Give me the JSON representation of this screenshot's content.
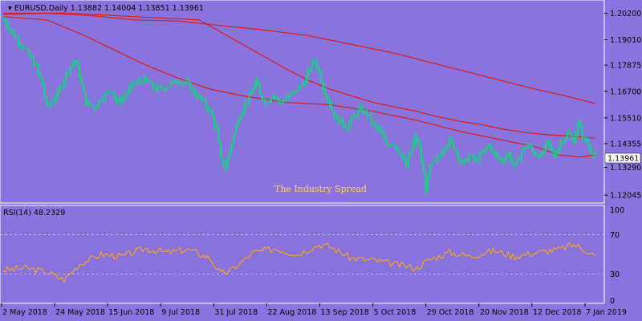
{
  "header": {
    "symbol_line": "EURUSD,Daily  1.13882 1.14004 1.13851 1.13961",
    "current_price": "1.13961"
  },
  "watermark": "The Industry Spread",
  "rsi": {
    "label": "RSI(14) 48.2329",
    "levels": [
      "100",
      "70",
      "30",
      "0"
    ]
  },
  "colors": {
    "background": "#8a73dc",
    "candle": "#00e676",
    "ma": "#d81b1b",
    "rsi_line": "#ffb300",
    "axis": "#ffffff",
    "price_tag": "#ffffff"
  },
  "chart_data": [
    {
      "type": "candlestick",
      "title": "EURUSD,Daily",
      "y_ticks": [
        "1.20200",
        "1.19010",
        "1.17875",
        "1.16700",
        "1.15510",
        "1.14355",
        "1.13290",
        "1.12045"
      ],
      "ylim": [
        1.118,
        1.2065
      ],
      "x_ticks": [
        "2 May 2018",
        "24 May 2018",
        "15 Jun 2018",
        "9 Jul 2018",
        "31 Jul 2018",
        "22 Aug 2018",
        "13 Sep 2018",
        "5 Oct 2018",
        "29 Oct 2018",
        "20 Nov 2018",
        "12 Dec 2018",
        "7 Jan 2019"
      ],
      "close_series": [
        [
          0,
          1.1995
        ],
        [
          5,
          1.192
        ],
        [
          10,
          1.186
        ],
        [
          15,
          1.178
        ],
        [
          18,
          1.17
        ],
        [
          20,
          1.1595
        ],
        [
          25,
          1.166
        ],
        [
          30,
          1.177
        ],
        [
          33,
          1.181
        ],
        [
          35,
          1.174
        ],
        [
          38,
          1.162
        ],
        [
          42,
          1.16
        ],
        [
          46,
          1.165
        ],
        [
          50,
          1.168
        ],
        [
          52,
          1.162
        ],
        [
          55,
          1.164
        ],
        [
          60,
          1.1705
        ],
        [
          65,
          1.172
        ],
        [
          70,
          1.168
        ],
        [
          75,
          1.169
        ],
        [
          80,
          1.172
        ],
        [
          85,
          1.17
        ],
        [
          88,
          1.166
        ],
        [
          92,
          1.162
        ],
        [
          95,
          1.158
        ],
        [
          98,
          1.15
        ],
        [
          100,
          1.136
        ],
        [
          102,
          1.133
        ],
        [
          105,
          1.144
        ],
        [
          108,
          1.155
        ],
        [
          111,
          1.161
        ],
        [
          114,
          1.166
        ],
        [
          116,
          1.172
        ],
        [
          118,
          1.165
        ],
        [
          121,
          1.162
        ],
        [
          124,
          1.166
        ],
        [
          127,
          1.162
        ],
        [
          130,
          1.164
        ],
        [
          133,
          1.166
        ],
        [
          136,
          1.169
        ],
        [
          139,
          1.172
        ],
        [
          141,
          1.178
        ],
        [
          143,
          1.181
        ],
        [
          145,
          1.176
        ],
        [
          147,
          1.168
        ],
        [
          149,
          1.164
        ],
        [
          152,
          1.156
        ],
        [
          155,
          1.153
        ],
        [
          158,
          1.151
        ],
        [
          161,
          1.156
        ],
        [
          164,
          1.159
        ],
        [
          167,
          1.157
        ],
        [
          170,
          1.152
        ],
        [
          173,
          1.149
        ],
        [
          176,
          1.143
        ],
        [
          179,
          1.144
        ],
        [
          182,
          1.14
        ],
        [
          185,
          1.133
        ],
        [
          187,
          1.14
        ],
        [
          189,
          1.146
        ],
        [
          191,
          1.142
        ],
        [
          193,
          1.13
        ],
        [
          194,
          1.123
        ],
        [
          196,
          1.133
        ],
        [
          199,
          1.136
        ],
        [
          202,
          1.141
        ],
        [
          205,
          1.145
        ],
        [
          208,
          1.14
        ],
        [
          211,
          1.134
        ],
        [
          214,
          1.138
        ],
        [
          217,
          1.136
        ],
        [
          220,
          1.139
        ],
        [
          223,
          1.143
        ],
        [
          226,
          1.138
        ],
        [
          229,
          1.136
        ],
        [
          232,
          1.139
        ],
        [
          235,
          1.133
        ],
        [
          238,
          1.14
        ],
        [
          241,
          1.143
        ],
        [
          244,
          1.139
        ],
        [
          247,
          1.138
        ],
        [
          250,
          1.144
        ],
        [
          253,
          1.138
        ],
        [
          256,
          1.144
        ],
        [
          259,
          1.148
        ],
        [
          262,
          1.145
        ],
        [
          264,
          1.153
        ],
        [
          266,
          1.147
        ],
        [
          268,
          1.144
        ],
        [
          270,
          1.14
        ],
        [
          272,
          1.1396
        ]
      ],
      "ma_series": [
        {
          "points": [
            [
              0,
              1.2005
            ],
            [
              20,
              1.199
            ],
            [
              35,
              1.193
            ],
            [
              50,
              1.186
            ],
            [
              65,
              1.179
            ],
            [
              80,
              1.173
            ],
            [
              95,
              1.168
            ],
            [
              110,
              1.165
            ],
            [
              130,
              1.162
            ],
            [
              150,
              1.161
            ],
            [
              170,
              1.158
            ],
            [
              190,
              1.154
            ],
            [
              210,
              1.149
            ],
            [
              230,
              1.145
            ],
            [
              245,
              1.142
            ],
            [
              255,
              1.1385
            ],
            [
              265,
              1.1375
            ],
            [
              272,
              1.1385
            ]
          ]
        },
        {
          "points": [
            [
              0,
              1.2015
            ],
            [
              20,
              1.202
            ],
            [
              40,
              1.201
            ],
            [
              60,
              1.199
            ],
            [
              80,
              1.1985
            ],
            [
              100,
              1.1965
            ],
            [
              120,
              1.1945
            ],
            [
              140,
              1.192
            ],
            [
              160,
              1.188
            ],
            [
              180,
              1.184
            ],
            [
              200,
              1.179
            ],
            [
              220,
              1.174
            ],
            [
              240,
              1.169
            ],
            [
              260,
              1.1645
            ],
            [
              272,
              1.1615
            ]
          ]
        },
        {
          "points": [
            [
              0,
              1.202
            ],
            [
              30,
              1.202
            ],
            [
              60,
              1.2005
            ],
            [
              90,
              1.199
            ],
            [
              110,
              1.188
            ],
            [
              130,
              1.177
            ],
            [
              140,
              1.172
            ],
            [
              150,
              1.168
            ],
            [
              160,
              1.165
            ],
            [
              170,
              1.162
            ],
            [
              180,
              1.16
            ],
            [
              190,
              1.158
            ],
            [
              200,
              1.1555
            ],
            [
              210,
              1.1535
            ],
            [
              220,
              1.152
            ],
            [
              230,
              1.15
            ],
            [
              240,
              1.1485
            ],
            [
              250,
              1.1475
            ],
            [
              260,
              1.147
            ],
            [
              272,
              1.146
            ]
          ]
        }
      ]
    },
    {
      "type": "line",
      "title": "RSI(14) 48.2329",
      "ylim": [
        0,
        100
      ],
      "y_ticks": [
        "100",
        "70",
        "30",
        "0"
      ],
      "levels": [
        70,
        30
      ],
      "series": [
        {
          "points": [
            [
              0,
              34
            ],
            [
              10,
              36
            ],
            [
              20,
              32
            ],
            [
              28,
              24
            ],
            [
              35,
              40
            ],
            [
              45,
              50
            ],
            [
              55,
              48
            ],
            [
              65,
              56
            ],
            [
              75,
              52
            ],
            [
              85,
              55
            ],
            [
              95,
              46
            ],
            [
              100,
              30
            ],
            [
              105,
              34
            ],
            [
              115,
              52
            ],
            [
              125,
              56
            ],
            [
              135,
              50
            ],
            [
              145,
              60
            ],
            [
              150,
              58
            ],
            [
              160,
              46
            ],
            [
              170,
              44
            ],
            [
              180,
              40
            ],
            [
              190,
              36
            ],
            [
              195,
              44
            ],
            [
              205,
              52
            ],
            [
              215,
              48
            ],
            [
              225,
              54
            ],
            [
              235,
              48
            ],
            [
              245,
              52
            ],
            [
              255,
              55
            ],
            [
              262,
              60
            ],
            [
              267,
              55
            ],
            [
              272,
              48.2
            ]
          ]
        }
      ]
    }
  ]
}
